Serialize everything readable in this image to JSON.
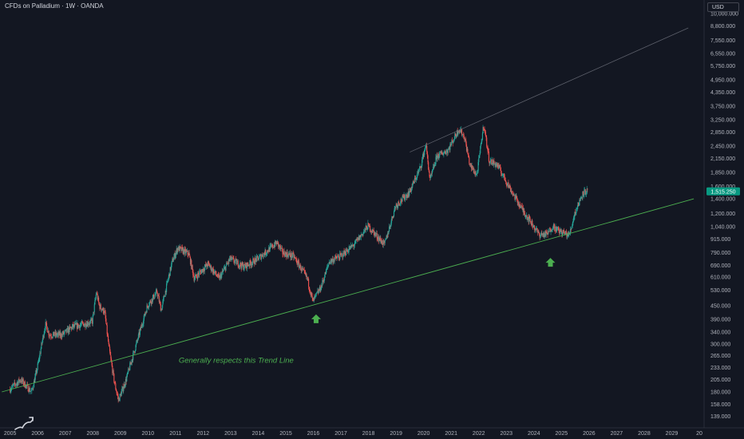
{
  "header": {
    "title": "CFDs on Palladium · 1W · OANDA",
    "currency": "USD"
  },
  "colors": {
    "background": "#131722",
    "up": "#26a69a",
    "down": "#ef5350",
    "trend_support": "#4caf50",
    "trend_resist": "#5d606b",
    "annotation": "#4caf50",
    "price_badge": "#089981",
    "text": "#b2b5be"
  },
  "icons": {
    "logo": "tradingview-logo-icon",
    "arrows": "arrow-up-icon"
  },
  "chart_data": {
    "type": "candlestick",
    "title": "CFDs on Palladium · 1W · OANDA",
    "y_scale": "log",
    "ylim": [
      125,
      11000
    ],
    "xlim": [
      2004.75,
      2030.0
    ],
    "y_ticks": [
      "10,000.000",
      "8,800.000",
      "7,550.000",
      "6,550.000",
      "5,750.000",
      "4,950.000",
      "4,350.000",
      "3,750.000",
      "3,250.000",
      "2,850.000",
      "2,450.000",
      "2,150.000",
      "1,850.000",
      "1,600.000",
      "1,400.000",
      "1,200.000",
      "1,040.000",
      "915.000",
      "790.000",
      "690.000",
      "610.000",
      "530.000",
      "450.000",
      "390.000",
      "340.000",
      "300.000",
      "265.000",
      "233.000",
      "205.000",
      "180.000",
      "158.000",
      "139.000"
    ],
    "x_ticks": [
      "2005",
      "2006",
      "2007",
      "2008",
      "2009",
      "2010",
      "2011",
      "2012",
      "2013",
      "2014",
      "2015",
      "2016",
      "2017",
      "2018",
      "2019",
      "2020",
      "2021",
      "2022",
      "2023",
      "2024",
      "2025",
      "2026",
      "2027",
      "2028",
      "2029",
      "20"
    ],
    "current_price": "1,515.250",
    "price_path": [
      [
        2005.0,
        185
      ],
      [
        2005.4,
        205
      ],
      [
        2005.8,
        180
      ],
      [
        2006.0,
        230
      ],
      [
        2006.3,
        370
      ],
      [
        2006.45,
        330
      ],
      [
        2006.9,
        330
      ],
      [
        2007.3,
        360
      ],
      [
        2007.7,
        370
      ],
      [
        2008.0,
        380
      ],
      [
        2008.15,
        520
      ],
      [
        2008.25,
        450
      ],
      [
        2008.45,
        420
      ],
      [
        2008.6,
        290
      ],
      [
        2008.8,
        200
      ],
      [
        2008.95,
        165
      ],
      [
        2009.2,
        200
      ],
      [
        2009.6,
        300
      ],
      [
        2010.0,
        450
      ],
      [
        2010.35,
        520
      ],
      [
        2010.5,
        430
      ],
      [
        2010.9,
        720
      ],
      [
        2011.1,
        830
      ],
      [
        2011.5,
        780
      ],
      [
        2011.7,
        600
      ],
      [
        2011.9,
        640
      ],
      [
        2012.2,
        700
      ],
      [
        2012.6,
        600
      ],
      [
        2013.0,
        740
      ],
      [
        2013.5,
        680
      ],
      [
        2014.0,
        740
      ],
      [
        2014.7,
        880
      ],
      [
        2014.9,
        790
      ],
      [
        2015.3,
        760
      ],
      [
        2015.8,
        600
      ],
      [
        2016.0,
        470
      ],
      [
        2016.3,
        550
      ],
      [
        2016.6,
        720
      ],
      [
        2017.0,
        760
      ],
      [
        2017.5,
        860
      ],
      [
        2018.0,
        1050
      ],
      [
        2018.3,
        950
      ],
      [
        2018.6,
        860
      ],
      [
        2019.0,
        1300
      ],
      [
        2019.5,
        1500
      ],
      [
        2019.9,
        1950
      ],
      [
        2020.1,
        2500
      ],
      [
        2020.25,
        1700
      ],
      [
        2020.5,
        2200
      ],
      [
        2020.9,
        2350
      ],
      [
        2021.3,
        2950
      ],
      [
        2021.5,
        2700
      ],
      [
        2021.7,
        2000
      ],
      [
        2021.95,
        1800
      ],
      [
        2022.2,
        3100
      ],
      [
        2022.4,
        2100
      ],
      [
        2022.7,
        2000
      ],
      [
        2023.0,
        1700
      ],
      [
        2023.3,
        1450
      ],
      [
        2023.6,
        1250
      ],
      [
        2023.9,
        1100
      ],
      [
        2024.2,
        960
      ],
      [
        2024.5,
        960
      ],
      [
        2024.7,
        1050
      ],
      [
        2024.9,
        1000
      ],
      [
        2025.3,
        950
      ],
      [
        2025.5,
        1200
      ],
      [
        2025.8,
        1500
      ],
      [
        2025.95,
        1515
      ]
    ],
    "trend_lines": [
      {
        "x": [
          2004.7,
          2029.8
        ],
        "y": [
          180,
          1400
        ]
      },
      {
        "x": [
          2019.5,
          2029.6
        ],
        "y": [
          2300,
          8600
        ]
      }
    ],
    "annotations": [
      {
        "text": "Generally respects this Trend Line",
        "x": 2013.2,
        "y": 245
      },
      {
        "text": "",
        "kind": "arrow-up",
        "x": 2016.1,
        "y": 390
      },
      {
        "text": "",
        "kind": "arrow-up",
        "x": 2024.6,
        "y": 710
      }
    ]
  }
}
